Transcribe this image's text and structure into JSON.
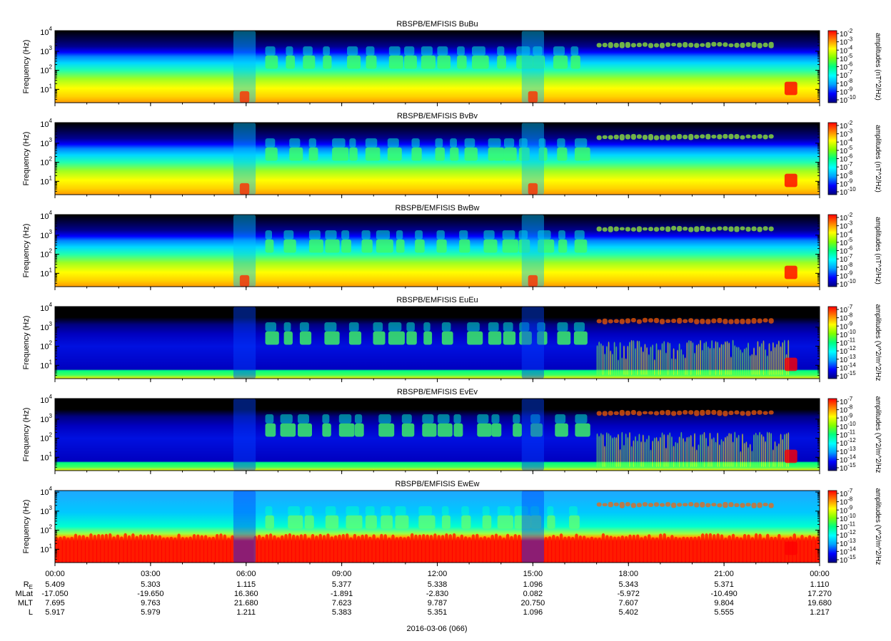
{
  "chart_data": {
    "type": "heatmap",
    "ylabel": "Frequency (Hz)",
    "y_scale": "log",
    "ylim_hz": [
      2,
      12000
    ],
    "y_tick_values": [
      10,
      100,
      1000,
      10000
    ],
    "y_tick_labels": [
      {
        "base": "10",
        "exp": "1"
      },
      {
        "base": "10",
        "exp": "2"
      },
      {
        "base": "10",
        "exp": "3"
      },
      {
        "base": "10",
        "exp": "4"
      }
    ],
    "x_range_hours": [
      0,
      24
    ],
    "x_tick_hours": [
      0,
      3,
      6,
      9,
      12,
      15,
      18,
      21,
      24
    ],
    "x_tick_labels": [
      "00:00",
      "03:00",
      "06:00",
      "09:00",
      "12:00",
      "15:00",
      "18:00",
      "21:00",
      "00:00"
    ],
    "colormap": [
      "#000080",
      "#0000ff",
      "#00a0ff",
      "#00ffff",
      "#00ff80",
      "#80ff00",
      "#ffff00",
      "#ff8000",
      "#ff0000"
    ],
    "panels": [
      {
        "title": "RBSPB/EMFISIS  BuBu",
        "colorbar_label": "amplitudes (nT^2/Hz)",
        "cbar_exps": [
          -2,
          -3,
          -4,
          -5,
          -6,
          -7,
          -8,
          -9,
          -10
        ],
        "type": "B"
      },
      {
        "title": "RBSPB/EMFISIS  BvBv",
        "colorbar_label": "amplitudes (nT^2/Hz)",
        "cbar_exps": [
          -2,
          -3,
          -4,
          -5,
          -6,
          -7,
          -8,
          -9,
          -10
        ],
        "type": "B"
      },
      {
        "title": "RBSPB/EMFISIS  BwBw",
        "colorbar_label": "amplitudes (nT^2/Hz)",
        "cbar_exps": [
          -2,
          -3,
          -4,
          -5,
          -6,
          -7,
          -8,
          -9,
          -10
        ],
        "type": "B"
      },
      {
        "title": "RBSPB/EMFISIS  EuEu",
        "colorbar_label": "amplitudes (V^2/m^2/Hz",
        "cbar_exps": [
          -7,
          -8,
          -9,
          -10,
          -11,
          -12,
          -13,
          -14,
          -15
        ],
        "type": "E"
      },
      {
        "title": "RBSPB/EMFISIS  EvEv",
        "colorbar_label": "amplitudes (V^2/m^2/Hz",
        "cbar_exps": [
          -7,
          -8,
          -9,
          -10,
          -11,
          -12,
          -13,
          -14,
          -15
        ],
        "type": "E"
      },
      {
        "title": "RBSPB/EMFISIS  EwEw",
        "colorbar_label": "amplitudes (V^2/m^2/Hz",
        "cbar_exps": [
          -7,
          -8,
          -9,
          -10,
          -11,
          -12,
          -13,
          -14,
          -15
        ],
        "type": "Ew"
      }
    ],
    "ephemeris": {
      "labels": [
        {
          "base": "R",
          "sub": "E"
        },
        {
          "base": "MLat",
          "sub": ""
        },
        {
          "base": "MLT",
          "sub": ""
        },
        {
          "base": "L",
          "sub": ""
        }
      ],
      "rows": [
        [
          "5.409",
          "5.303",
          "1.115",
          "5.377",
          "5.338",
          "1.096",
          "5.343",
          "5.371",
          "1.110"
        ],
        [
          "-17.050",
          "-19.650",
          "16.360",
          "-1.891",
          "-2.830",
          "0.082",
          "-5.972",
          "-10.490",
          "17.270"
        ],
        [
          "7.695",
          "9.763",
          "21.680",
          "7.623",
          "9.787",
          "20.750",
          "7.607",
          "9.804",
          "19.680"
        ],
        [
          "5.917",
          "5.979",
          "1.211",
          "5.383",
          "5.351",
          "1.096",
          "5.402",
          "5.555",
          "1.217"
        ]
      ]
    },
    "date_label": "2016-03-06 (066)"
  }
}
